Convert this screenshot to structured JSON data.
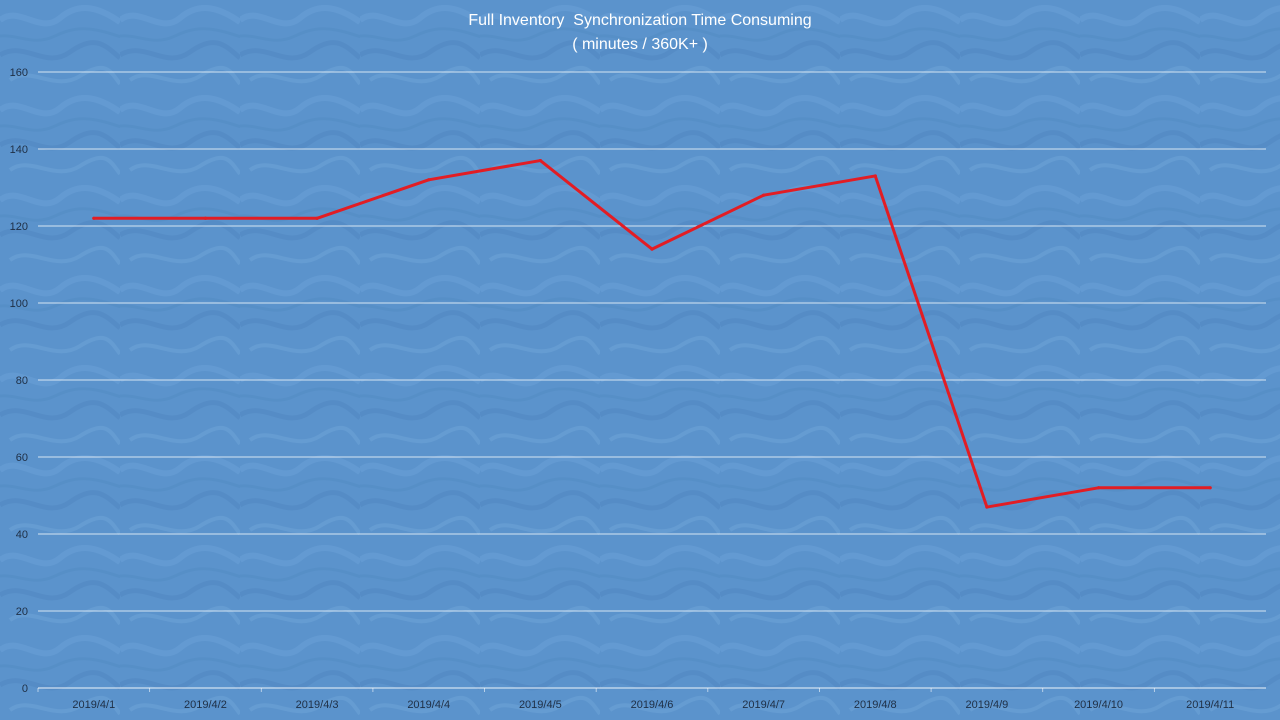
{
  "chart_data": {
    "type": "line",
    "title_lines": [
      "Full Inventory  Synchronization Time Consuming",
      "( minutes / 360K+ )"
    ],
    "categories": [
      "2019/4/1",
      "2019/4/2",
      "2019/4/3",
      "2019/4/4",
      "2019/4/5",
      "2019/4/6",
      "2019/4/7",
      "2019/4/8",
      "2019/4/9",
      "2019/4/10",
      "2019/4/11"
    ],
    "values": [
      122,
      122,
      122,
      132,
      137,
      114,
      128,
      133,
      47,
      52,
      52
    ],
    "ylim": [
      0,
      160
    ],
    "yticks": [
      0,
      20,
      40,
      60,
      80,
      100,
      120,
      140,
      160
    ],
    "grid": true,
    "legend": "none",
    "colors": {
      "background": "#5b93cc",
      "gridline": "#ffffff",
      "series_line": "#e21d24",
      "title_text": "#ffffff",
      "tick_text": "#1f2f45"
    }
  }
}
